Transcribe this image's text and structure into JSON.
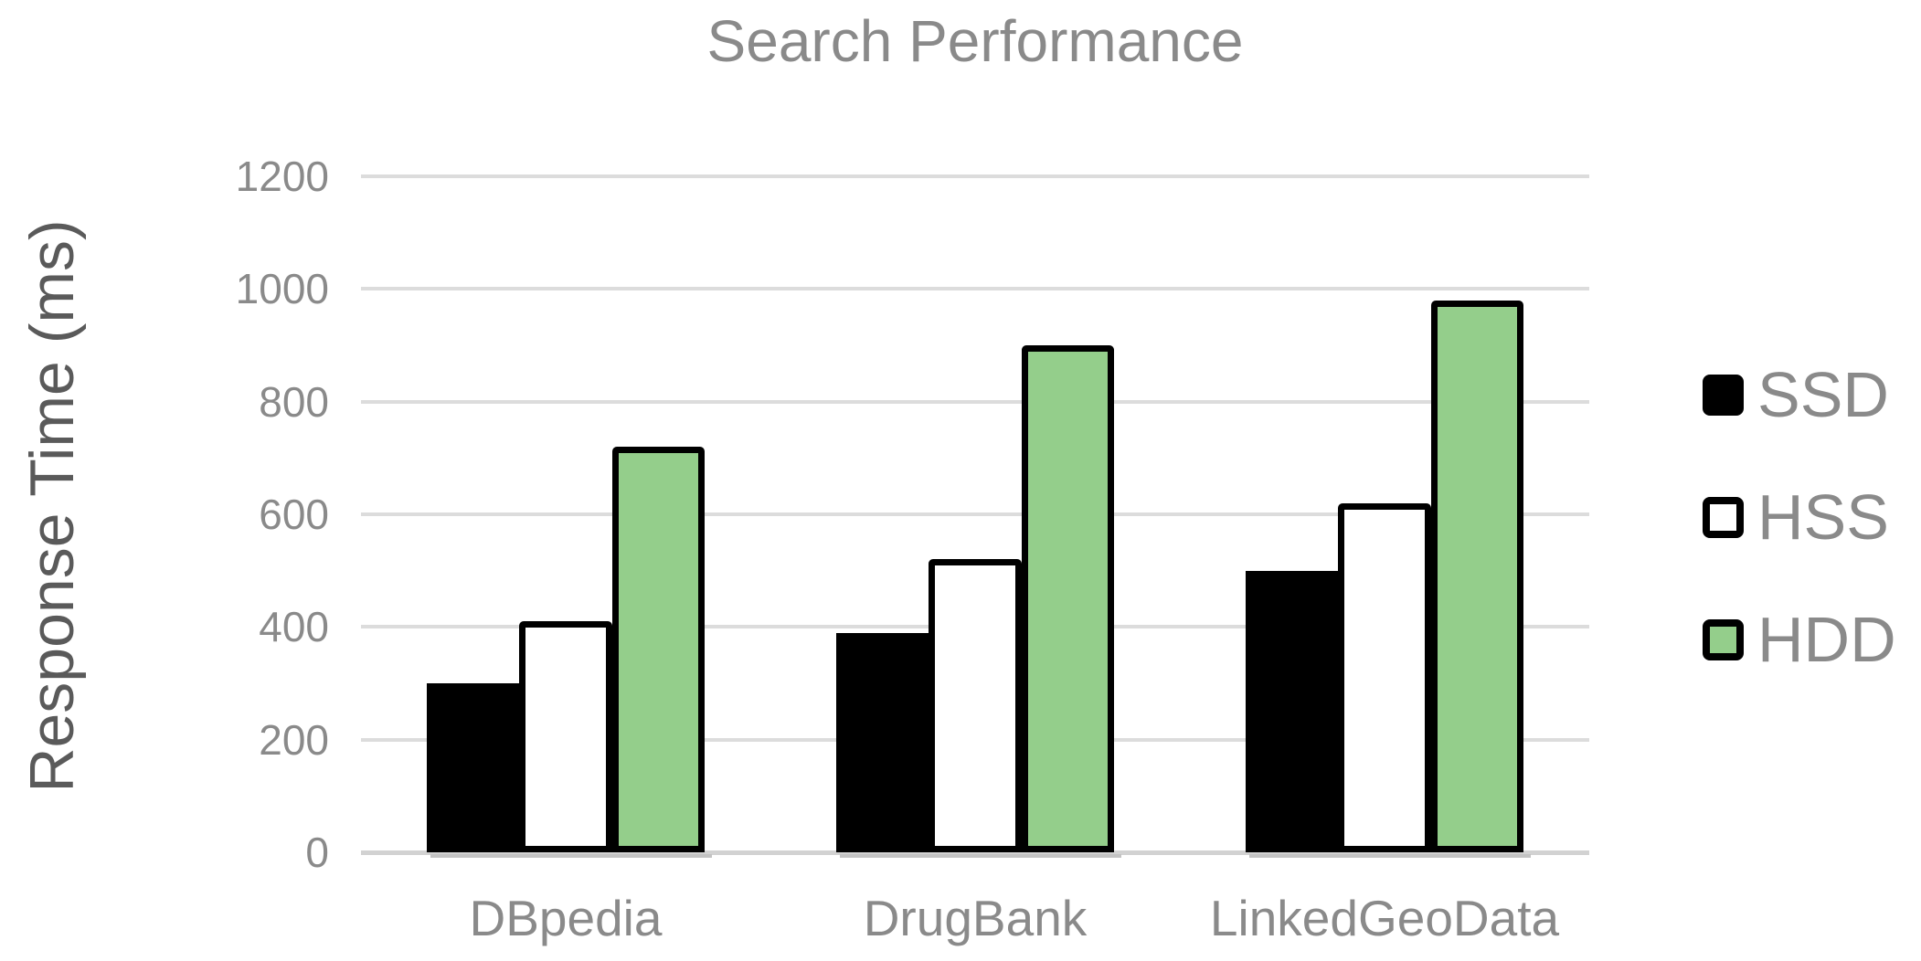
{
  "chart_data": {
    "type": "bar",
    "title": "Search Performance",
    "xlabel": "",
    "ylabel": "Response Time (ms)",
    "categories": [
      "DBpedia",
      "DrugBank",
      "LinkedGeoData"
    ],
    "series": [
      {
        "name": "SSD",
        "fill": "#000000",
        "border": "#000000",
        "values": [
          300,
          390,
          500
        ]
      },
      {
        "name": "HSS",
        "fill": "#ffffff",
        "border": "#000000",
        "values": [
          410,
          520,
          620
        ]
      },
      {
        "name": "HDD",
        "fill": "#94ce8b",
        "border": "#000000",
        "values": [
          720,
          900,
          980
        ]
      }
    ],
    "ylim": [
      0,
      1200
    ],
    "yticks": [
      0,
      200,
      400,
      600,
      800,
      1000,
      1200
    ],
    "grid": true,
    "legend_position": "right",
    "colors": {
      "title_text": "#8a8a8a",
      "axis_label_text": "#5a5a5a",
      "tick_text": "#8a8a8a",
      "gridline": "#dcdcdc",
      "baseline": "#d2d2d2",
      "hdd_green": "#94ce8b",
      "ssd_black": "#000000",
      "hss_white": "#ffffff"
    }
  }
}
